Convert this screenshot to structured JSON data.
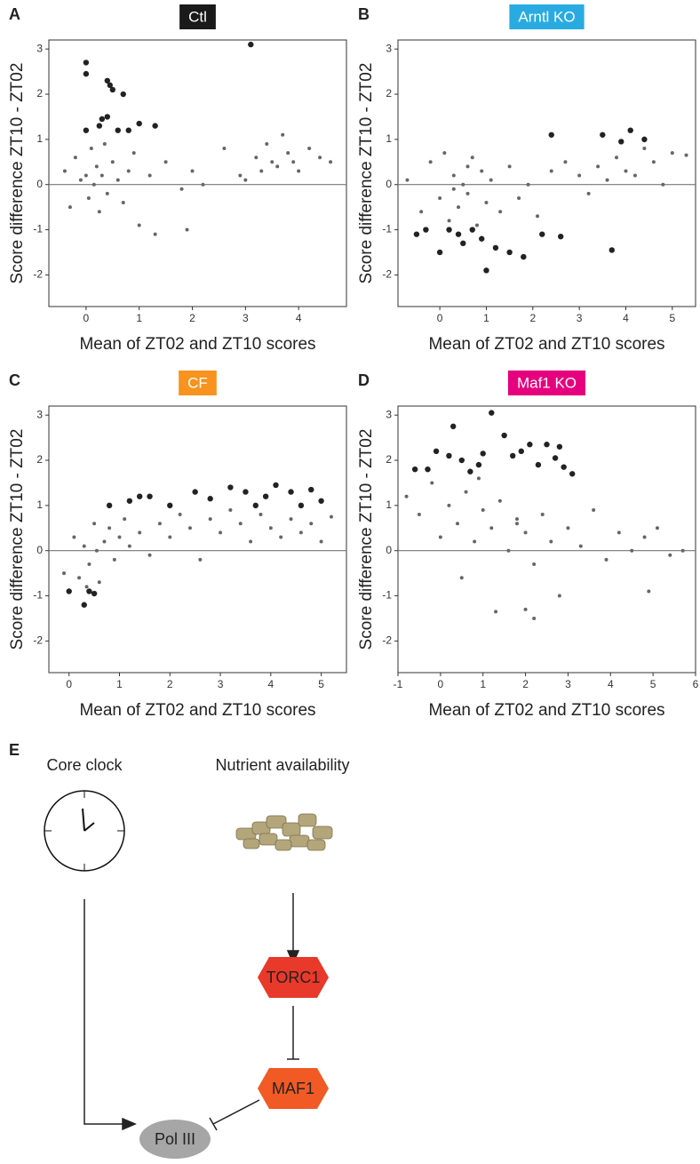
{
  "chart_data": [
    {
      "type": "scatter",
      "panel": "A",
      "title": "Ctl",
      "title_color": "#1a1a1a",
      "x_label": "Mean of ZT02 and ZT10 scores",
      "y_label": "Score difference  ZT10 - ZT02",
      "xlim": [
        -0.7,
        4.9
      ],
      "xticks": [
        0,
        1,
        2,
        3,
        4
      ],
      "ylim": [
        -2.7,
        3.2
      ],
      "yticks": [
        -2,
        -1,
        0,
        1,
        2,
        3
      ],
      "hline": 0,
      "series": [
        {
          "color": "#666666",
          "size": 2,
          "x": [
            -0.4,
            -0.3,
            -0.2,
            -0.1,
            0,
            0.05,
            0.1,
            0.15,
            0.2,
            0.25,
            0.3,
            0.35,
            0.4,
            0.5,
            0.6,
            0.7,
            0.8,
            0.9,
            1.0,
            1.2,
            1.5,
            1.8,
            2.0,
            2.2,
            2.6,
            2.9,
            3.0,
            3.2,
            3.3,
            3.4,
            3.5,
            3.6,
            3.7,
            3.8,
            3.9,
            4.0,
            4.2,
            4.4,
            4.6,
            1.3,
            1.9
          ],
          "values": [
            0.3,
            -0.5,
            0.6,
            0.1,
            0.2,
            -0.3,
            0.8,
            0.0,
            0.4,
            -0.6,
            0.2,
            0.9,
            -0.2,
            0.5,
            0.1,
            -0.4,
            0.3,
            0.7,
            -0.9,
            0.2,
            0.5,
            -0.1,
            0.3,
            0.0,
            0.8,
            0.2,
            0.1,
            0.6,
            0.3,
            0.9,
            0.5,
            0.4,
            1.1,
            0.7,
            0.5,
            0.3,
            0.8,
            0.6,
            0.5,
            -1.1,
            -1.0
          ]
        },
        {
          "color": "#222222",
          "size": 3.2,
          "x": [
            0,
            0,
            0.4,
            0.45,
            0.5,
            0.7,
            3.1,
            0.3,
            0.4,
            0.25,
            0.6,
            1.0,
            0,
            1.3,
            0.8
          ],
          "values": [
            2.7,
            2.45,
            2.3,
            2.2,
            2.1,
            2.0,
            3.1,
            1.45,
            1.5,
            1.3,
            1.2,
            1.35,
            1.2,
            1.3,
            1.2
          ]
        }
      ]
    },
    {
      "type": "scatter",
      "panel": "B",
      "title": "Arntl KO",
      "title_color": "#29abe2",
      "x_label": "Mean of ZT02 and ZT10 scores",
      "y_label": "Score difference  ZT10 - ZT02",
      "xlim": [
        -0.9,
        5.5
      ],
      "xticks": [
        0,
        1,
        2,
        3,
        4,
        5
      ],
      "ylim": [
        -2.7,
        3.2
      ],
      "yticks": [
        -2,
        -1,
        0,
        1,
        2,
        3
      ],
      "hline": 0,
      "series": [
        {
          "color": "#666666",
          "size": 2,
          "x": [
            -0.7,
            -0.4,
            -0.2,
            0,
            0.1,
            0.2,
            0.3,
            0.4,
            0.5,
            0.6,
            0.7,
            0.8,
            0.9,
            1.0,
            1.1,
            1.3,
            1.5,
            1.7,
            1.9,
            2.1,
            2.4,
            2.7,
            3.0,
            3.2,
            3.4,
            3.6,
            3.8,
            4.0,
            4.2,
            4.4,
            4.6,
            4.8,
            5.0,
            5.3,
            0.3,
            0.6
          ],
          "values": [
            0.1,
            -0.6,
            0.5,
            -0.3,
            0.7,
            -0.8,
            0.2,
            -0.5,
            0.0,
            -0.2,
            0.6,
            -0.9,
            0.3,
            -0.4,
            0.1,
            -0.6,
            0.4,
            -0.3,
            0.0,
            -0.7,
            0.3,
            0.5,
            0.2,
            -0.2,
            0.4,
            0.1,
            0.6,
            0.3,
            0.2,
            0.8,
            0.5,
            0.0,
            0.7,
            0.65,
            -0.1,
            0.4
          ]
        },
        {
          "color": "#222222",
          "size": 3.2,
          "x": [
            -0.5,
            -0.3,
            0,
            0.2,
            0.4,
            0.5,
            0.7,
            0.9,
            1.0,
            1.2,
            1.5,
            1.8,
            2.4,
            3.5,
            3.7,
            3.9,
            4.1,
            4.4,
            2.2,
            2.6
          ],
          "values": [
            -1.1,
            -1.0,
            -1.5,
            -1.0,
            -1.1,
            -1.3,
            -1.0,
            -1.2,
            -1.9,
            -1.4,
            -1.5,
            -1.6,
            1.1,
            1.1,
            -1.45,
            0.95,
            1.2,
            1.0,
            -1.1,
            -1.15
          ]
        }
      ]
    },
    {
      "type": "scatter",
      "panel": "C",
      "title": "CF",
      "title_color": "#f7931e",
      "x_label": "Mean of ZT02 and ZT10 scores",
      "y_label": "Score difference  ZT10 - ZT02",
      "xlim": [
        -0.4,
        5.5
      ],
      "xticks": [
        0,
        1,
        2,
        3,
        4,
        5
      ],
      "ylim": [
        -2.7,
        3.2
      ],
      "yticks": [
        -2,
        -1,
        0,
        1,
        2,
        3
      ],
      "hline": 0,
      "series": [
        {
          "color": "#666666",
          "size": 2,
          "x": [
            -0.1,
            0.1,
            0.2,
            0.3,
            0.4,
            0.5,
            0.6,
            0.7,
            0.8,
            0.9,
            1.0,
            1.1,
            1.2,
            1.4,
            1.6,
            1.8,
            2.0,
            2.2,
            2.4,
            2.6,
            2.8,
            3.0,
            3.2,
            3.4,
            3.6,
            3.8,
            4.0,
            4.2,
            4.4,
            4.6,
            4.8,
            5.0,
            5.2,
            0.35,
            0.55
          ],
          "values": [
            -0.5,
            0.3,
            -0.6,
            0.1,
            -0.3,
            0.6,
            -0.7,
            0.2,
            0.5,
            -0.2,
            0.3,
            0.7,
            0.1,
            0.4,
            -0.1,
            0.6,
            0.3,
            0.8,
            0.5,
            -0.2,
            0.7,
            0.4,
            0.9,
            0.6,
            0.2,
            0.8,
            0.5,
            0.3,
            0.7,
            0.4,
            0.6,
            0.2,
            0.75,
            -0.8,
            0.0
          ]
        },
        {
          "color": "#222222",
          "size": 3.2,
          "x": [
            0,
            0.3,
            0.4,
            0.5,
            0.8,
            1.2,
            1.4,
            1.6,
            2.0,
            2.5,
            2.8,
            3.2,
            3.5,
            3.9,
            4.1,
            4.4,
            4.6,
            4.8,
            5.0,
            3.7
          ],
          "values": [
            -0.9,
            -1.2,
            -0.9,
            -0.95,
            1.0,
            1.1,
            1.2,
            1.2,
            1.0,
            1.3,
            1.15,
            1.4,
            1.3,
            1.2,
            1.45,
            1.3,
            1.0,
            1.35,
            1.1,
            1.0
          ]
        }
      ]
    },
    {
      "type": "scatter",
      "panel": "D",
      "title": "Maf1 KO",
      "title_color": "#e6007e",
      "x_label": "Mean of ZT02 and ZT10 scores",
      "y_label": "Score difference  ZT10 - ZT02",
      "xlim": [
        -1,
        6
      ],
      "xticks": [
        -1,
        0,
        1,
        2,
        3,
        4,
        5,
        6
      ],
      "ylim": [
        -2.7,
        3.2
      ],
      "yticks": [
        -2,
        -1,
        0,
        1,
        2,
        3
      ],
      "hline": 0,
      "series": [
        {
          "color": "#666666",
          "size": 2,
          "x": [
            -0.8,
            -0.5,
            -0.2,
            0,
            0.2,
            0.4,
            0.6,
            0.8,
            1.0,
            1.2,
            1.4,
            1.6,
            1.8,
            2.0,
            2.2,
            2.4,
            2.6,
            2.8,
            3.0,
            3.3,
            3.6,
            3.9,
            4.2,
            4.5,
            4.8,
            5.1,
            5.4,
            5.7,
            0.5,
            1.3,
            2.0,
            1.8,
            2.2,
            4.9,
            0.9
          ],
          "values": [
            1.2,
            0.8,
            1.5,
            0.3,
            1.0,
            0.6,
            1.3,
            0.2,
            0.9,
            0.5,
            1.1,
            0.0,
            0.7,
            0.4,
            -0.3,
            0.8,
            0.2,
            -1.0,
            0.5,
            0.1,
            0.9,
            -0.2,
            0.4,
            0.0,
            0.3,
            0.5,
            -0.1,
            0.0,
            -0.6,
            -1.35,
            -1.3,
            0.6,
            -1.5,
            -0.9,
            1.6
          ]
        },
        {
          "color": "#222222",
          "size": 3.2,
          "x": [
            -0.6,
            -0.3,
            -0.1,
            0.2,
            0.3,
            0.5,
            0.7,
            0.9,
            1.0,
            1.2,
            1.5,
            1.7,
            1.9,
            2.1,
            2.3,
            2.5,
            2.7,
            2.9,
            3.1,
            2.8
          ],
          "values": [
            1.8,
            1.8,
            2.2,
            2.1,
            2.75,
            2.0,
            1.75,
            1.9,
            2.15,
            3.05,
            2.55,
            2.1,
            2.2,
            2.35,
            1.9,
            2.35,
            2.05,
            1.85,
            1.7,
            2.3
          ]
        }
      ]
    }
  ],
  "diagram": {
    "panel": "E",
    "core_clock": "Core clock",
    "nutrients": "Nutrient availability",
    "torc1": "TORC1",
    "maf1": "MAF1",
    "pol3": "Pol III"
  }
}
